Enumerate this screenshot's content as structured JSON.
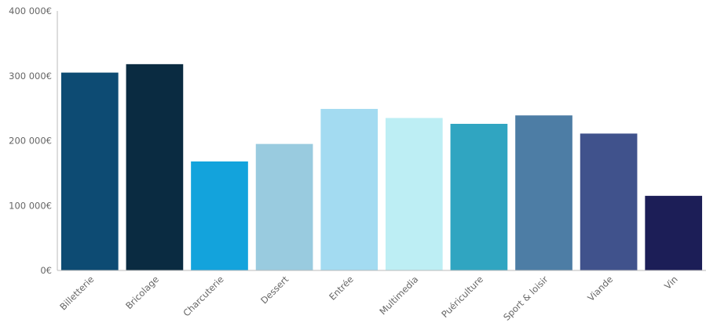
{
  "chart_data": {
    "type": "bar",
    "title": "",
    "xlabel": "",
    "ylabel": "",
    "ylim": [
      0,
      400000
    ],
    "yticks": [
      0,
      100000,
      200000,
      300000,
      400000
    ],
    "ytick_labels": [
      "0€",
      "100 000€",
      "200 000€",
      "300 000€",
      "400 000€"
    ],
    "grid": false,
    "legend": "none",
    "categories": [
      "Billetterie",
      "Bricolage",
      "Charcuterie",
      "Dessert",
      "Entrée",
      "Multimedia",
      "Puériculture",
      "Sport & loisir",
      "Viande",
      "Vin"
    ],
    "values": [
      305000,
      318000,
      168000,
      195000,
      249000,
      235000,
      226000,
      239000,
      211000,
      115000
    ],
    "colors": [
      "#0d4b73",
      "#0a2b41",
      "#13a3dc",
      "#99cbdf",
      "#a3dbf1",
      "#bdeef4",
      "#30a5c1",
      "#4d7da5",
      "#40528c",
      "#1c1e57"
    ]
  }
}
